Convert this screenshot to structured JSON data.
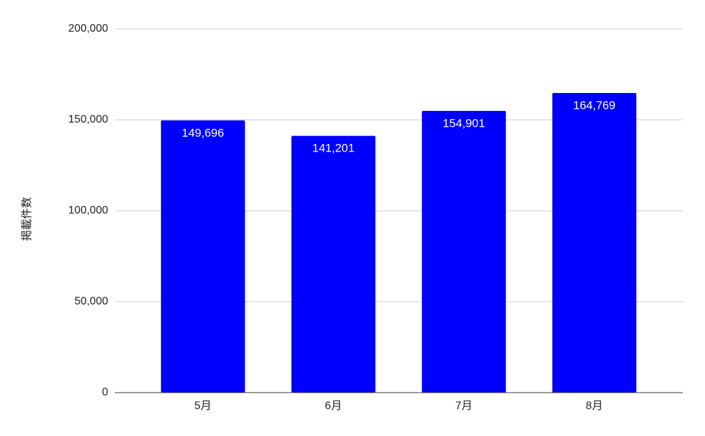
{
  "chart_data": {
    "type": "bar",
    "y_label": "掲載件数",
    "categories": [
      "5月",
      "6月",
      "7月",
      "8月"
    ],
    "values": [
      149696,
      141201,
      154901,
      164769
    ],
    "value_labels": [
      "149,696",
      "141,201",
      "154,901",
      "164,769"
    ],
    "color": "#0000ff",
    "ylim": [
      0,
      200000
    ],
    "yticks": [
      0,
      {
        "value": 50000,
        "label": "50,000"
      },
      {
        "value": 100000,
        "label": "100,000"
      },
      {
        "value": 150000,
        "label": "150,000"
      },
      {
        "value": 200000,
        "label": "200,000"
      }
    ],
    "grid": true
  }
}
